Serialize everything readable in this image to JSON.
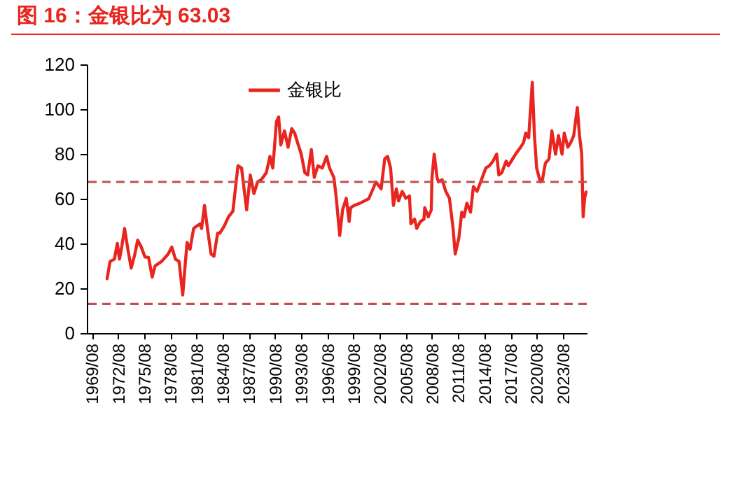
{
  "chart_data": {
    "type": "line",
    "title": "图 16：金银比为 63.03",
    "x": [
      "1971-05",
      "1971-09",
      "1972-03",
      "1972-07",
      "1972-10",
      "1973-01",
      "1973-05",
      "1973-09",
      "1974-02",
      "1974-07",
      "1974-11",
      "1975-04",
      "1975-09",
      "1976-02",
      "1976-07",
      "1976-11",
      "1977-08",
      "1978-05",
      "1978-10",
      "1979-03",
      "1979-08",
      "1980-01",
      "1980-04",
      "1980-07",
      "1980-11",
      "1981-04",
      "1981-08",
      "1982-01",
      "1982-03",
      "1982-07",
      "1982-11",
      "1983-04",
      "1983-08",
      "1984-01",
      "1984-04",
      "1984-10",
      "1985-04",
      "1985-10",
      "1986-05",
      "1986-10",
      "1987-03",
      "1987-05",
      "1987-10",
      "1988-03",
      "1988-08",
      "1989-01",
      "1989-08",
      "1990-01",
      "1990-05",
      "1990-10",
      "1991-01",
      "1991-04",
      "1991-09",
      "1992-02",
      "1992-07",
      "1992-11",
      "1993-04",
      "1993-08",
      "1994-01",
      "1994-05",
      "1994-10",
      "1995-02",
      "1995-07",
      "1996-01",
      "1996-07",
      "1996-11",
      "1997-05",
      "1997-08",
      "1998-01",
      "1998-05",
      "1998-10",
      "1999-02",
      "1999-04",
      "1999-09",
      "2000-05",
      "2001-05",
      "2002-03",
      "2002-10",
      "2003-03",
      "2003-07",
      "2003-11",
      "2004-03",
      "2004-07",
      "2004-10",
      "2005-03",
      "2005-08",
      "2006-01",
      "2006-03",
      "2006-08",
      "2006-11",
      "2007-04",
      "2007-09",
      "2007-10",
      "2008-03",
      "2008-07",
      "2008-08",
      "2008-11",
      "2009-03",
      "2009-05",
      "2009-10",
      "2010-03",
      "2010-08",
      "2011-01",
      "2011-04",
      "2011-09",
      "2012-01",
      "2012-04",
      "2012-08",
      "2013-01",
      "2013-05",
      "2013-10",
      "2014-03",
      "2014-10",
      "2015-03",
      "2015-08",
      "2016-01",
      "2016-04",
      "2016-08",
      "2017-02",
      "2017-05",
      "2017-11",
      "2018-03",
      "2018-10",
      "2019-02",
      "2019-05",
      "2019-09",
      "2020-02",
      "2020-05",
      "2020-08",
      "2021-01",
      "2021-04",
      "2021-08",
      "2022-01",
      "2022-05",
      "2022-10",
      "2023-02",
      "2023-07",
      "2023-10",
      "2024-03",
      "2024-07",
      "2024-11",
      "2025-04",
      "2025-07",
      "2025-10",
      "2025-12",
      "2026-02",
      "2026-04"
    ],
    "series": [
      {
        "name": "金银比",
        "color": "#e8251e",
        "values": [
          24.3,
          32,
          33,
          40,
          33,
          38.4,
          46.7,
          38.4,
          29,
          35,
          41.5,
          38.4,
          34,
          33.8,
          25,
          30,
          32,
          35.3,
          38.4,
          33,
          32,
          17,
          29,
          40.5,
          37.4,
          46.7,
          47.7,
          48.8,
          46.7,
          57,
          46.7,
          35.3,
          34.3,
          44.6,
          44.6,
          47.7,
          51.9,
          54.4,
          74.7,
          73.7,
          60.2,
          55,
          70.6,
          62.3,
          67.5,
          68.5,
          71.6,
          78.9,
          73.7,
          94.5,
          96.5,
          84,
          90.3,
          83,
          91.3,
          89.3,
          84,
          80,
          71.6,
          70.6,
          82,
          69.5,
          74.7,
          73.7,
          78.9,
          73.7,
          69.5,
          61.2,
          43.6,
          55,
          60.2,
          49.8,
          56,
          57,
          58,
          60,
          67.5,
          64.4,
          77.8,
          78.9,
          73.7,
          57,
          64.4,
          59,
          63.3,
          60.2,
          61.2,
          48.8,
          50.9,
          46.7,
          49.8,
          50.9,
          56,
          51.9,
          55,
          69.5,
          79.9,
          69.5,
          67.5,
          68.5,
          63.3,
          60.2,
          46.7,
          35.3,
          42.6,
          54,
          51.9,
          58,
          54,
          65.4,
          63.3,
          67.5,
          73.7,
          74.7,
          76.8,
          79.9,
          70.6,
          71.6,
          76.8,
          74.7,
          77.8,
          79.9,
          83,
          85.1,
          89.3,
          87.2,
          112,
          88.2,
          73.7,
          67.5,
          68.5,
          75.8,
          77.8,
          90.3,
          79.9,
          88.2,
          79.9,
          89.3,
          83,
          85.1,
          88.2,
          100.7,
          88.2,
          79.9,
          51.9,
          60.2,
          63
        ]
      }
    ],
    "xlim": [
      "1969-01",
      "2026-05"
    ],
    "xticks": [
      {
        "value": "1969-08",
        "label": "1969/08"
      },
      {
        "value": "1972-08",
        "label": "1972/08"
      },
      {
        "value": "1975-08",
        "label": "1975/08"
      },
      {
        "value": "1978-08",
        "label": "1978/08"
      },
      {
        "value": "1981-08",
        "label": "1981/08"
      },
      {
        "value": "1984-08",
        "label": "1984/08"
      },
      {
        "value": "1987-08",
        "label": "1987/08"
      },
      {
        "value": "1990-08",
        "label": "1990/08"
      },
      {
        "value": "1993-08",
        "label": "1993/08"
      },
      {
        "value": "1996-08",
        "label": "1996/08"
      },
      {
        "value": "1999-08",
        "label": "1999/08"
      },
      {
        "value": "2002-08",
        "label": "2002/08"
      },
      {
        "value": "2005-08",
        "label": "2005/08"
      },
      {
        "value": "2008-08",
        "label": "2008/08"
      },
      {
        "value": "2011-08",
        "label": "2011/08"
      },
      {
        "value": "2014-08",
        "label": "2014/08"
      },
      {
        "value": "2017-08",
        "label": "2017/08"
      },
      {
        "value": "2020-08",
        "label": "2020/08"
      },
      {
        "value": "2023-08",
        "label": "2023/08"
      }
    ],
    "ylim": [
      0,
      120
    ],
    "yticks": [
      0,
      20,
      40,
      60,
      80,
      100,
      120
    ],
    "ref_lines": [
      {
        "axis": "y",
        "value": 67.5,
        "color": "#c0504d",
        "line_style": "dashed"
      },
      {
        "axis": "y",
        "value": 13,
        "color": "#c0504d",
        "line_style": "dashed"
      }
    ],
    "legend": "top",
    "line_style": "solid"
  }
}
